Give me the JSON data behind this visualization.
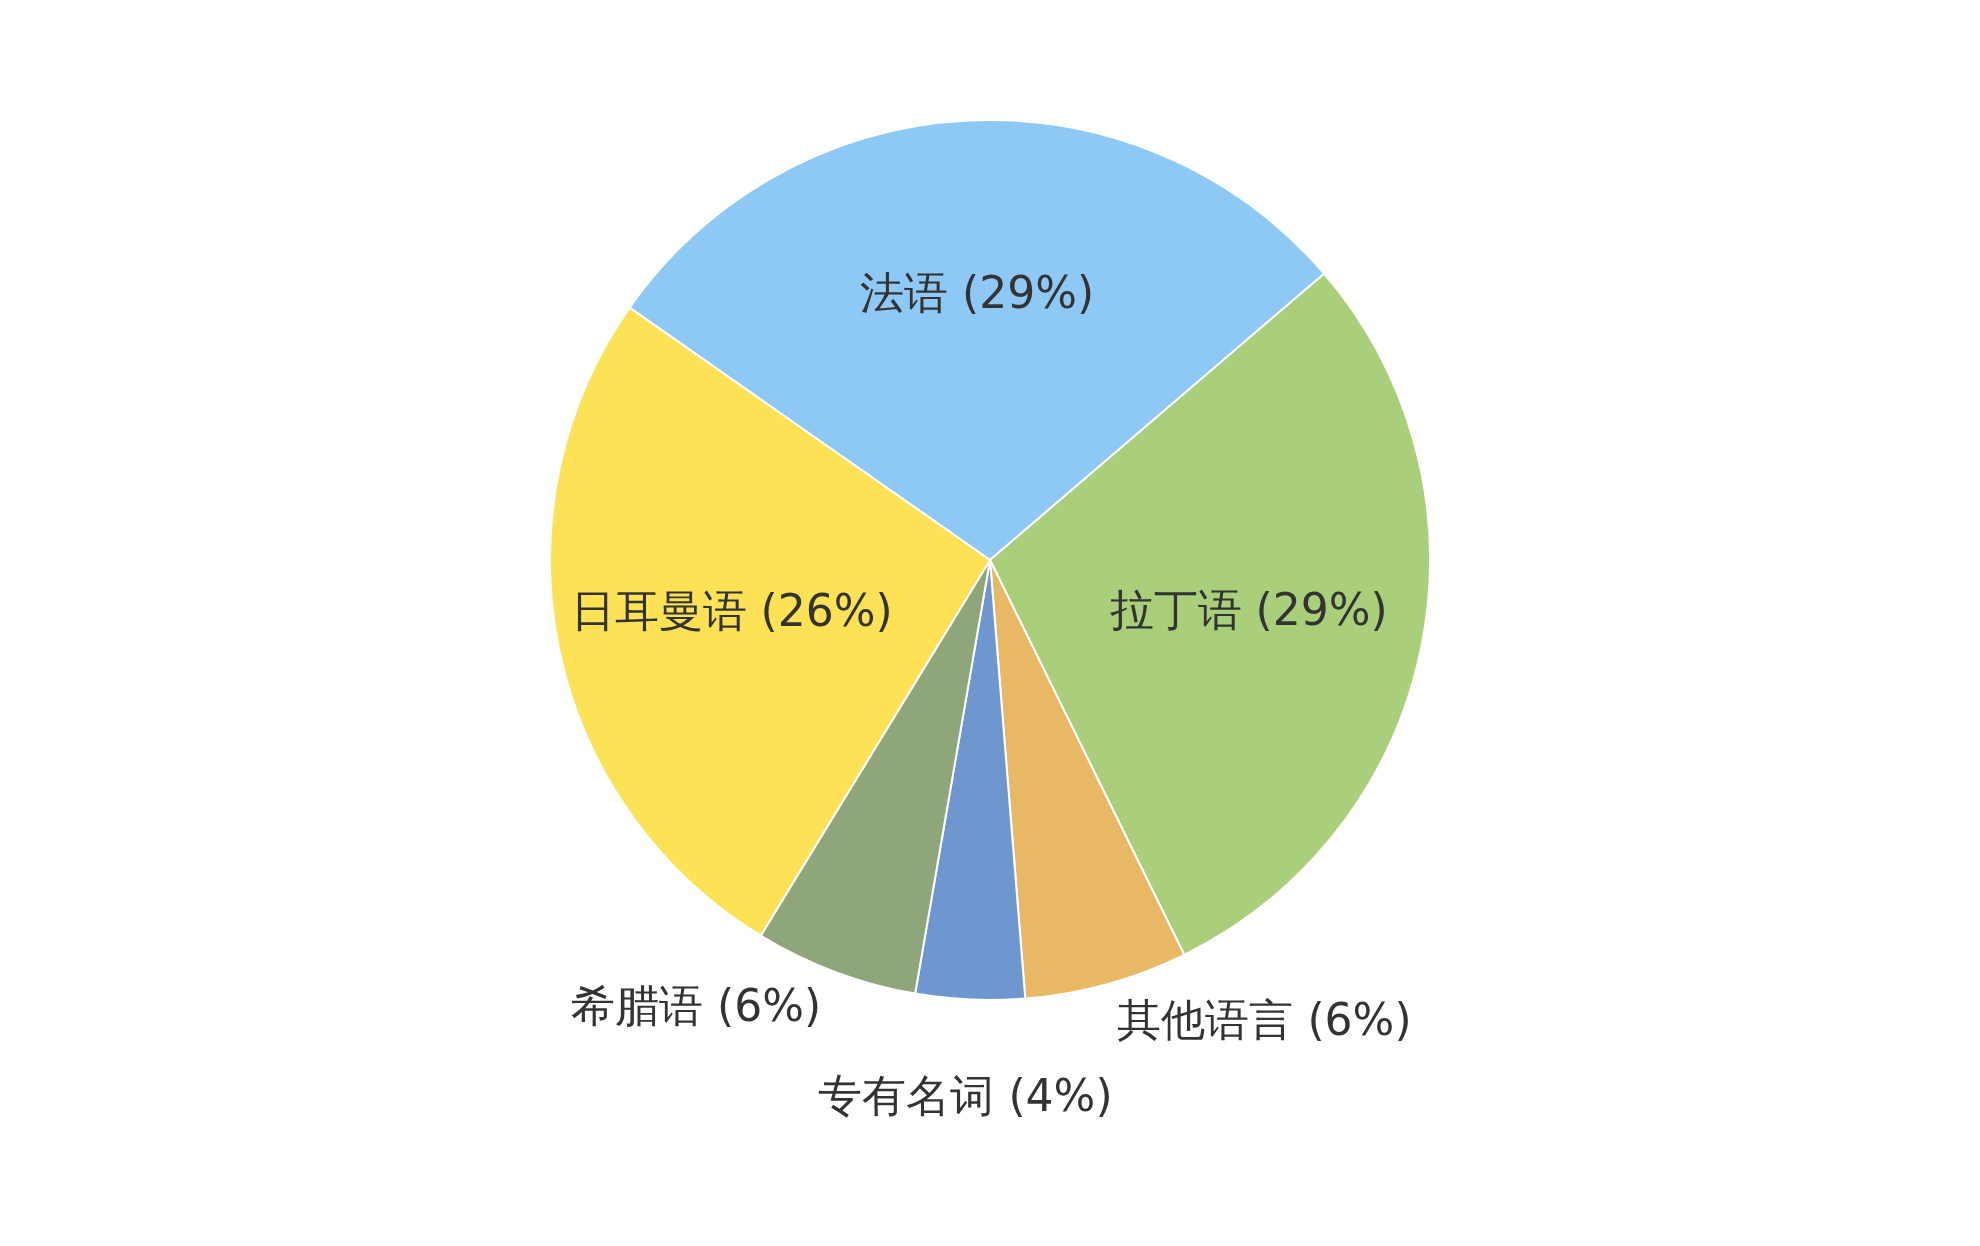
{
  "chart_data": {
    "type": "pie",
    "categories": [
      "法语",
      "拉丁语",
      "其他语言",
      "专有名词",
      "希腊语",
      "日耳曼语"
    ],
    "values": [
      29,
      29,
      6,
      4,
      6,
      26
    ],
    "value_labels": [
      "(29%)",
      "(29%)",
      "(6%)",
      "(4%)",
      "(6%)",
      "(26%)"
    ],
    "colors": [
      "#8ec8f5",
      "#a9cf7a",
      "#e8b865",
      "#6f97cf",
      "#8fa57a",
      "#fde255"
    ]
  }
}
